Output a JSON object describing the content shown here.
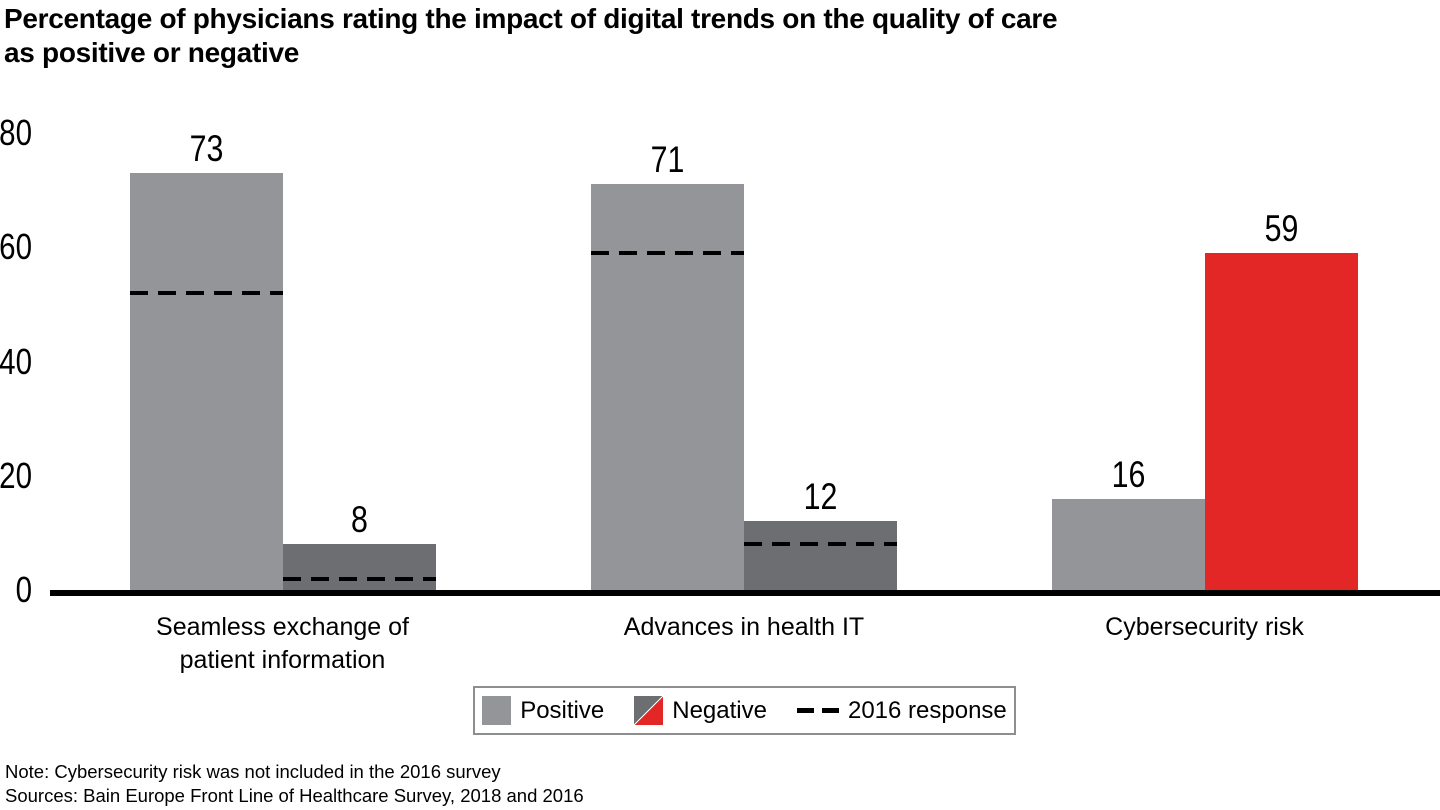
{
  "title": {
    "line1": "Percentage of physicians rating the impact of digital trends on the quality of care",
    "line2": "as positive or negative"
  },
  "chart_data": {
    "type": "bar",
    "title": "Percentage of physicians rating the impact of digital trends on the quality of care as positive or negative",
    "categories": [
      "Seamless exchange of patient information",
      "Advances in health IT",
      "Cybersecurity risk"
    ],
    "category_lines": [
      [
        "Seamless exchange of",
        "patient information"
      ],
      [
        "Advances in health IT"
      ],
      [
        "Cybersecurity risk"
      ]
    ],
    "series": [
      {
        "name": "Positive",
        "values": [
          73,
          71,
          16
        ],
        "colors": [
          "#939598",
          "#939598",
          "#939598"
        ]
      },
      {
        "name": "Negative",
        "values": [
          8,
          12,
          59
        ],
        "colors": [
          "#6d6e71",
          "#6d6e71",
          "#e22726"
        ]
      }
    ],
    "values_2016": [
      [
        52,
        59,
        null
      ],
      [
        2,
        8,
        null
      ]
    ],
    "ylim": [
      0,
      80
    ],
    "yticks": [
      0,
      20,
      40,
      60,
      80
    ],
    "grid": false,
    "legend_position": "bottom"
  },
  "legend": {
    "positive_label": "Positive",
    "negative_label": "Negative",
    "dash_label": "2016 response"
  },
  "colors": {
    "positive": "#939598",
    "negative_gray": "#6d6e71",
    "negative_red": "#e22726",
    "dash": "#000000",
    "axis": "#000000"
  },
  "notes": {
    "note": "Note: Cybersecurity risk was not included in the 2016 survey",
    "sources": "Sources: Bain Europe Front Line of Healthcare Survey, 2018 and 2016"
  }
}
